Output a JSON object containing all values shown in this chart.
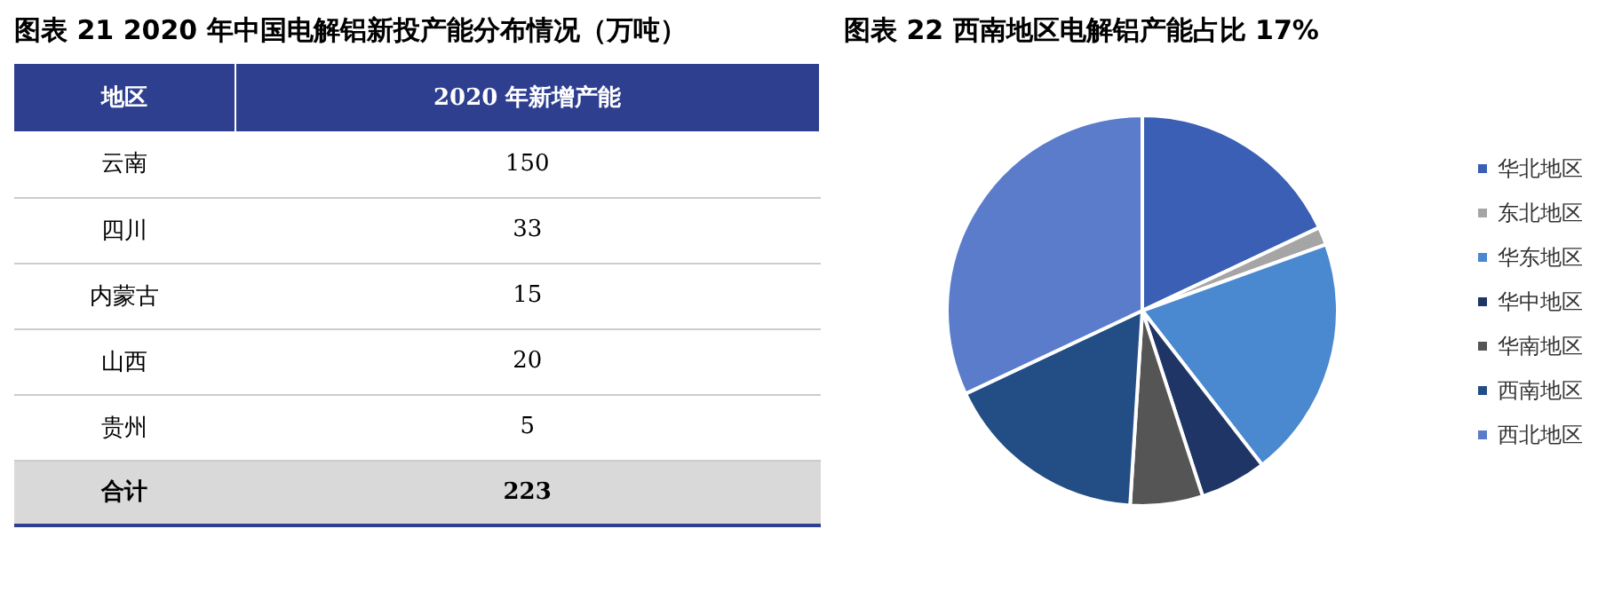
{
  "chart_data": [
    {
      "type": "other",
      "title": "图表 21 2020 年中国电解铝新投产能分布情况（万吨）",
      "xlabel": "地区",
      "ylabel": "2020 年新增产能",
      "categories": [
        "云南",
        "四川",
        "内蒙古",
        "山西",
        "贵州",
        "合计"
      ],
      "values": [
        150,
        33,
        15,
        20,
        5,
        223
      ],
      "data_labels": true
    },
    {
      "type": "pie",
      "title": "图表 22  西南地区电解铝产能占比 17%",
      "legend": "right",
      "categories": [
        "华北地区",
        "东北地区",
        "华东地区",
        "华中地区",
        "华南地区",
        "西南地区",
        "西北地区"
      ],
      "values": [
        18,
        1.5,
        20,
        5.5,
        6,
        17,
        32
      ],
      "colors": [
        "#3a5fb5",
        "#a5a5a5",
        "#4a88cf",
        "#1f3566",
        "#555555",
        "#234e85",
        "#5b7ccb"
      ]
    }
  ]
}
